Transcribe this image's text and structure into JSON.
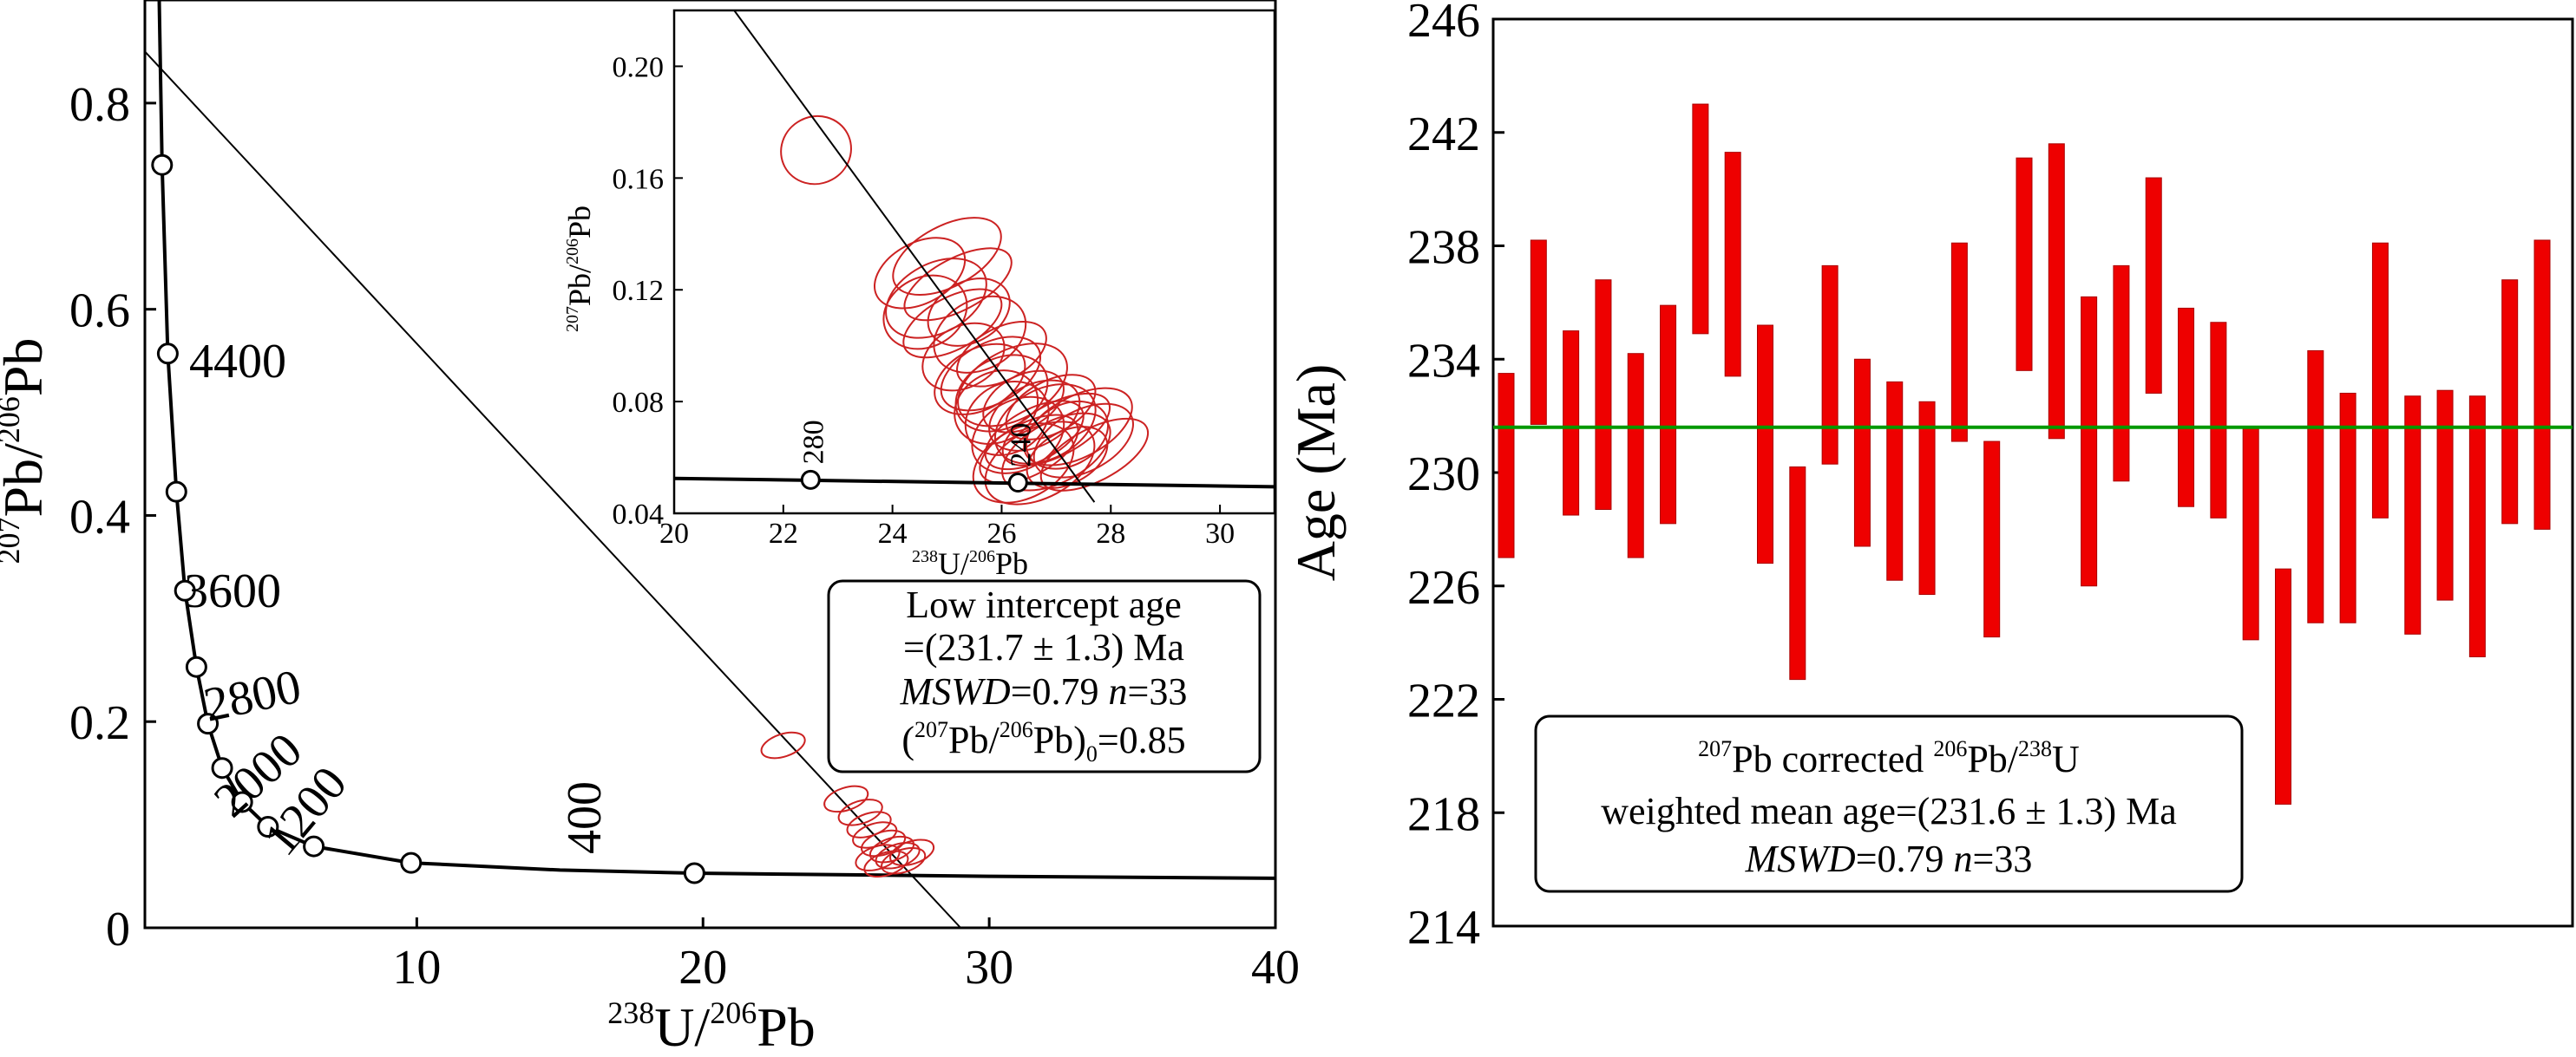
{
  "chart_data": [
    {
      "type": "scatter",
      "panel": "left",
      "xlabel": "238U/206Pb",
      "ylabel": "207Pb/206Pb",
      "xlim": [
        0.5,
        40
      ],
      "ylim": [
        0,
        0.9
      ],
      "xticks": [
        "10",
        "20",
        "30",
        "40"
      ],
      "yticks": [
        "0",
        "0.2",
        "0.4",
        "0.6",
        "0.8"
      ],
      "concordia_ages_ma": [
        "4400",
        "3600",
        "2800",
        "2000",
        "1200",
        "400"
      ],
      "concordia_points": [
        {
          "x": 1.1,
          "y": 0.74
        },
        {
          "x": 1.3,
          "y": 0.557
        },
        {
          "x": 1.6,
          "y": 0.423
        },
        {
          "x": 1.9,
          "y": 0.327
        },
        {
          "x": 2.3,
          "y": 0.253
        },
        {
          "x": 2.7,
          "y": 0.198
        },
        {
          "x": 3.2,
          "y": 0.155
        },
        {
          "x": 3.9,
          "y": 0.122
        },
        {
          "x": 4.8,
          "y": 0.098
        },
        {
          "x": 6.4,
          "y": 0.079
        },
        {
          "x": 9.8,
          "y": 0.063
        },
        {
          "x": 19.7,
          "y": 0.053
        }
      ],
      "concordia_curve": [
        [
          1.0,
          0.9
        ],
        [
          1.1,
          0.74
        ],
        [
          1.3,
          0.557
        ],
        [
          1.6,
          0.423
        ],
        [
          1.9,
          0.327
        ],
        [
          2.3,
          0.253
        ],
        [
          2.7,
          0.198
        ],
        [
          3.2,
          0.155
        ],
        [
          3.9,
          0.122
        ],
        [
          4.8,
          0.098
        ],
        [
          6.4,
          0.079
        ],
        [
          9.8,
          0.063
        ],
        [
          15,
          0.056
        ],
        [
          19.7,
          0.053
        ],
        [
          30,
          0.05
        ],
        [
          40,
          0.048
        ]
      ],
      "discordia_line": {
        "x": [
          0.5,
          29
        ],
        "y": [
          0.85,
          0
        ]
      },
      "data_ellipses": [
        {
          "x": 22.8,
          "y": 0.177
        },
        {
          "x": 25.0,
          "y": 0.125
        },
        {
          "x": 25.5,
          "y": 0.112
        },
        {
          "x": 25.8,
          "y": 0.1
        },
        {
          "x": 26.0,
          "y": 0.09
        },
        {
          "x": 26.3,
          "y": 0.082
        },
        {
          "x": 26.6,
          "y": 0.076
        },
        {
          "x": 26.8,
          "y": 0.07
        },
        {
          "x": 27.0,
          "y": 0.065
        },
        {
          "x": 26.4,
          "y": 0.062
        },
        {
          "x": 27.3,
          "y": 0.073
        },
        {
          "x": 26.1,
          "y": 0.068
        }
      ],
      "annotation": {
        "line1": "Low intercept age",
        "line2": "=(231.7 ± 1.3) Ma",
        "mswd_label": "MSWD",
        "mswd_value": "=0.79",
        "n_label": "n",
        "n_value": "=33",
        "ratio_label": "(207Pb/206Pb)0",
        "ratio_value": "=0.85"
      }
    },
    {
      "type": "scatter",
      "panel": "inset",
      "xlabel": "238U/206Pb",
      "ylabel": "207Pb/206Pb",
      "xlim": [
        20,
        31
      ],
      "ylim": [
        0.04,
        0.22
      ],
      "xticks": [
        "20",
        "22",
        "24",
        "26",
        "28",
        "30"
      ],
      "yticks": [
        "0.04",
        "0.08",
        "0.12",
        "0.16",
        "0.20"
      ],
      "concordia_ages_ma": [
        "280",
        "240"
      ],
      "concordia_points": [
        {
          "x": 22.5,
          "y": 0.052
        },
        {
          "x": 26.3,
          "y": 0.051
        }
      ],
      "concordia_curve": [
        [
          20,
          0.0525
        ],
        [
          31,
          0.0495
        ]
      ],
      "discordia_line": {
        "x": [
          21.1,
          27.7
        ],
        "y": [
          0.22,
          0.044
        ]
      },
      "data_ellipses": [
        {
          "x": 22.6,
          "y": 0.17,
          "rx": 0.65,
          "ry": 0.012
        },
        {
          "x": 24.5,
          "y": 0.126
        },
        {
          "x": 24.8,
          "y": 0.117
        },
        {
          "x": 25.2,
          "y": 0.122
        },
        {
          "x": 25.4,
          "y": 0.112
        },
        {
          "x": 25.6,
          "y": 0.104
        },
        {
          "x": 25.1,
          "y": 0.108
        },
        {
          "x": 25.0,
          "y": 0.132
        },
        {
          "x": 24.6,
          "y": 0.112
        },
        {
          "x": 26.0,
          "y": 0.097
        },
        {
          "x": 25.8,
          "y": 0.09
        },
        {
          "x": 26.2,
          "y": 0.086
        },
        {
          "x": 26.4,
          "y": 0.08
        },
        {
          "x": 26.6,
          "y": 0.075
        },
        {
          "x": 26.8,
          "y": 0.072
        },
        {
          "x": 27.0,
          "y": 0.07
        },
        {
          "x": 27.2,
          "y": 0.068
        },
        {
          "x": 26.3,
          "y": 0.068
        },
        {
          "x": 26.5,
          "y": 0.063
        },
        {
          "x": 27.0,
          "y": 0.062
        },
        {
          "x": 26.1,
          "y": 0.074
        },
        {
          "x": 26.9,
          "y": 0.078
        },
        {
          "x": 27.5,
          "y": 0.066
        },
        {
          "x": 26.7,
          "y": 0.058
        },
        {
          "x": 27.2,
          "y": 0.06
        },
        {
          "x": 25.6,
          "y": 0.088
        },
        {
          "x": 26.4,
          "y": 0.058
        },
        {
          "x": 27.7,
          "y": 0.061
        },
        {
          "x": 25.3,
          "y": 0.096
        },
        {
          "x": 26.0,
          "y": 0.083
        },
        {
          "x": 26.6,
          "y": 0.068
        },
        {
          "x": 27.4,
          "y": 0.071
        },
        {
          "x": 25.9,
          "y": 0.078
        }
      ]
    },
    {
      "type": "bar",
      "panel": "right",
      "ylabel": "Age (Ma)",
      "ylim": [
        214,
        246
      ],
      "yticks": [
        "214",
        "218",
        "222",
        "226",
        "230",
        "234",
        "238",
        "242",
        "246"
      ],
      "weighted_mean": 231.6,
      "bars": [
        {
          "low": 227.0,
          "high": 233.5
        },
        {
          "low": 231.7,
          "high": 238.2
        },
        {
          "low": 228.5,
          "high": 235.0
        },
        {
          "low": 228.7,
          "high": 236.8
        },
        {
          "low": 227.0,
          "high": 234.2
        },
        {
          "low": 228.2,
          "high": 235.9
        },
        {
          "low": 234.9,
          "high": 243.0
        },
        {
          "low": 233.4,
          "high": 241.3
        },
        {
          "low": 226.8,
          "high": 235.2
        },
        {
          "low": 222.7,
          "high": 230.2
        },
        {
          "low": 230.3,
          "high": 237.3
        },
        {
          "low": 227.4,
          "high": 234.0
        },
        {
          "low": 226.2,
          "high": 233.2
        },
        {
          "low": 225.7,
          "high": 232.5
        },
        {
          "low": 231.1,
          "high": 238.1
        },
        {
          "low": 224.2,
          "high": 231.1
        },
        {
          "low": 233.6,
          "high": 241.1
        },
        {
          "low": 231.2,
          "high": 241.6
        },
        {
          "low": 226.0,
          "high": 236.2
        },
        {
          "low": 229.7,
          "high": 237.3
        },
        {
          "low": 232.8,
          "high": 240.4
        },
        {
          "low": 228.8,
          "high": 235.8
        },
        {
          "low": 228.4,
          "high": 235.3
        },
        {
          "low": 224.1,
          "high": 231.6
        },
        {
          "low": 218.3,
          "high": 226.6
        },
        {
          "low": 224.7,
          "high": 234.3
        },
        {
          "low": 224.7,
          "high": 232.8
        },
        {
          "low": 228.4,
          "high": 238.1
        },
        {
          "low": 224.3,
          "high": 232.7
        },
        {
          "low": 225.5,
          "high": 232.9
        },
        {
          "low": 223.5,
          "high": 232.7
        },
        {
          "low": 228.2,
          "high": 236.8
        },
        {
          "low": 228.0,
          "high": 238.2
        }
      ],
      "annotation": {
        "line1": "207Pb corrected 206Pb/238U",
        "line2": "weighted mean age=(231.6 ± 1.3) Ma",
        "mswd_label": "MSWD",
        "mswd_value": "=0.79",
        "n_label": "n",
        "n_value": "=33"
      }
    }
  ],
  "colors": {
    "ellipse": "#cc2222",
    "bar": "#ee0000",
    "mean_line": "#009900",
    "axis": "#000000"
  },
  "text": {
    "sup238": "238",
    "sup206": "206",
    "sup207": "207",
    "U": "U",
    "Pb": "Pb",
    "slashPb": "/",
    "age_ma": "Age (Ma)",
    "corrected": "corrected",
    "mean_age_text": "weighted mean age=(231.6 ± 1.3) Ma",
    "low_intercept": "Low intercept age",
    "low_age_text": "=(231.7 ± 1.3) Ma",
    "sub0": "0",
    "ratio_eq": "=0.85"
  }
}
